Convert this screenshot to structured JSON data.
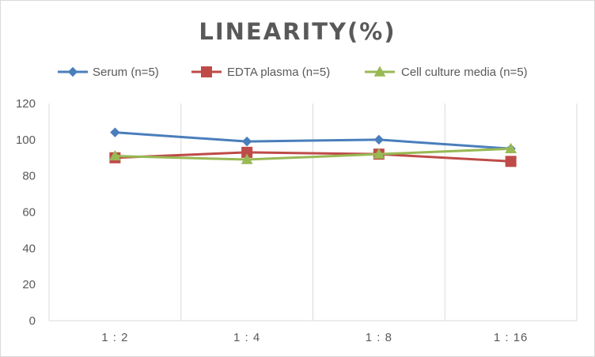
{
  "chart_data": {
    "type": "line",
    "title": "LINEARITY(%)",
    "xlabel": "",
    "ylabel": "",
    "categories": [
      "1:2",
      "1:4",
      "1:8",
      "1:16"
    ],
    "ylim": [
      0,
      120
    ],
    "yticks": [
      0,
      20,
      40,
      60,
      80,
      100,
      120
    ],
    "grid": "vertical",
    "legend_position": "top",
    "series": [
      {
        "name": "Serum (n=5)",
        "values": [
          104,
          99,
          100,
          95
        ],
        "color": "#4a7ebb",
        "marker": "diamond"
      },
      {
        "name": "EDTA plasma (n=5)",
        "values": [
          90,
          93,
          92,
          88
        ],
        "color": "#be4b48",
        "marker": "square"
      },
      {
        "name": "Cell culture media (n=5)",
        "values": [
          91,
          89,
          92,
          95
        ],
        "color": "#98b954",
        "marker": "triangle"
      }
    ]
  }
}
